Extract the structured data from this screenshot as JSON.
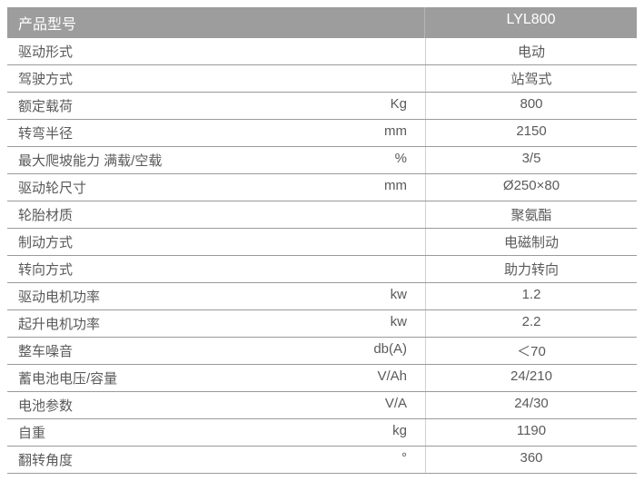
{
  "table": {
    "header": {
      "left": "产品型号",
      "right": "LYL800"
    },
    "header_bg": "#9d9d9d",
    "header_fg": "#ffffff",
    "row_fg": "#5a5a5a",
    "border_color": "#9a9a9a",
    "rows": [
      {
        "label": "驱动形式",
        "unit": "",
        "value": "电动"
      },
      {
        "label": "驾驶方式",
        "unit": "",
        "value": "站驾式"
      },
      {
        "label": "额定载荷",
        "unit": "Kg",
        "value": "800"
      },
      {
        "label": "转弯半径",
        "unit": "mm",
        "value": "2150"
      },
      {
        "label": "最大爬坡能力 满载/空载",
        "unit": "%",
        "value": "3/5"
      },
      {
        "label": "驱动轮尺寸",
        "unit": "mm",
        "value": "Ø250×80"
      },
      {
        "label": "轮胎材质",
        "unit": "",
        "value": "聚氨酯"
      },
      {
        "label": "制动方式",
        "unit": "",
        "value": "电磁制动"
      },
      {
        "label": "转向方式",
        "unit": "",
        "value": "助力转向"
      },
      {
        "label": "驱动电机功率",
        "unit": "kw",
        "value": "1.2"
      },
      {
        "label": "起升电机功率",
        "unit": "kw",
        "value": "2.2"
      },
      {
        "label": "整车噪音",
        "unit": "db(A)",
        "value": "＜70"
      },
      {
        "label": "蓄电池电压/容量",
        "unit": "V/Ah",
        "value": "24/210"
      },
      {
        "label": "电池参数",
        "unit": "V/A",
        "value": "24/30"
      },
      {
        "label": "自重",
        "unit": "kg",
        "value": "1190"
      },
      {
        "label": "翻转角度",
        "unit": "°",
        "value": "360"
      }
    ]
  }
}
